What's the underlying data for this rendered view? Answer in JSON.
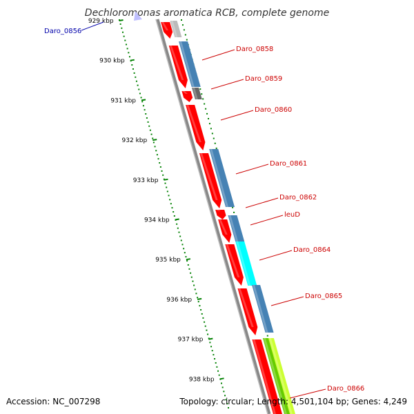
{
  "title": "Dechloromonas aromatica RCB, complete genome",
  "footer": {
    "accession": "Accession: NC_007298",
    "summary": "Topology: circular; Length: 4,501,104 bp; Genes: 4,249"
  },
  "colors": {
    "forward_gene": "#ff0000",
    "reverse_gene": "#4682b4",
    "hypothetical_gene": "#666666",
    "highlight_gene": "#00ffff",
    "green_gene": "#66cc00",
    "yellow_gene": "#ccff33",
    "tick_marks": "#008000",
    "backbone": "#888888",
    "label_red": "#cc0000",
    "label_blue": "#0000aa"
  },
  "ticks": [
    "929 kbp",
    "930 kbp",
    "931 kbp",
    "932 kbp",
    "933 kbp",
    "934 kbp",
    "935 kbp",
    "936 kbp",
    "937 kbp",
    "938 kbp"
  ],
  "gene_labels": [
    {
      "name": "Daro_0856",
      "color": "blue"
    },
    {
      "name": "Daro_0858",
      "color": "red"
    },
    {
      "name": "Daro_0859",
      "color": "red"
    },
    {
      "name": "Daro_0860",
      "color": "red"
    },
    {
      "name": "Daro_0861",
      "color": "red"
    },
    {
      "name": "Daro_0862",
      "color": "red"
    },
    {
      "name": "leuD",
      "color": "red"
    },
    {
      "name": "Daro_0864",
      "color": "red"
    },
    {
      "name": "Daro_0865",
      "color": "red"
    },
    {
      "name": "Daro_0866",
      "color": "red"
    }
  ]
}
